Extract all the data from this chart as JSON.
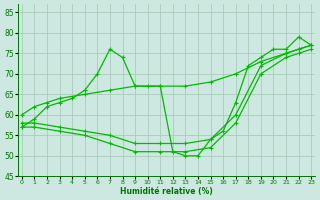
{
  "xlabel": "Humidité relative (%)",
  "bg_color": "#cce8e0",
  "grid_color": "#aaccbb",
  "line_color": "#00bb00",
  "ylim": [
    45,
    87
  ],
  "xlim": [
    -0.3,
    23.3
  ],
  "yticks": [
    45,
    50,
    55,
    60,
    65,
    70,
    75,
    80,
    85
  ],
  "xticks": [
    0,
    1,
    2,
    3,
    4,
    5,
    6,
    7,
    8,
    9,
    10,
    11,
    12,
    13,
    14,
    15,
    16,
    17,
    18,
    19,
    20,
    21,
    22,
    23
  ],
  "series": [
    {
      "x": [
        0,
        1,
        2,
        3,
        4,
        5,
        6,
        7,
        8,
        9,
        10,
        11,
        12,
        13,
        14,
        15,
        16,
        17,
        18,
        19,
        20,
        21,
        22,
        23
      ],
      "y": [
        57,
        59,
        62,
        63,
        64,
        66,
        70,
        76,
        74,
        67,
        67,
        67,
        51,
        50,
        50,
        54,
        56,
        63,
        72,
        74,
        76,
        76,
        79,
        77
      ],
      "marker": true
    },
    {
      "x": [
        0,
        1,
        2,
        3,
        5,
        7,
        9,
        11,
        13,
        15,
        17,
        19,
        21,
        22,
        23
      ],
      "y": [
        60,
        62,
        63,
        64,
        65,
        66,
        67,
        67,
        67,
        68,
        70,
        73,
        75,
        76,
        77
      ],
      "marker": true
    },
    {
      "x": [
        0,
        1,
        3,
        5,
        7,
        9,
        11,
        13,
        15,
        17,
        19,
        21,
        22,
        23
      ],
      "y": [
        58,
        58,
        57,
        56,
        55,
        53,
        53,
        53,
        54,
        60,
        72,
        75,
        76,
        77
      ],
      "marker": true
    },
    {
      "x": [
        0,
        1,
        3,
        5,
        7,
        9,
        11,
        13,
        15,
        17,
        19,
        21,
        22,
        23
      ],
      "y": [
        57,
        57,
        56,
        55,
        53,
        51,
        51,
        51,
        52,
        58,
        70,
        74,
        75,
        76
      ],
      "marker": true
    }
  ]
}
